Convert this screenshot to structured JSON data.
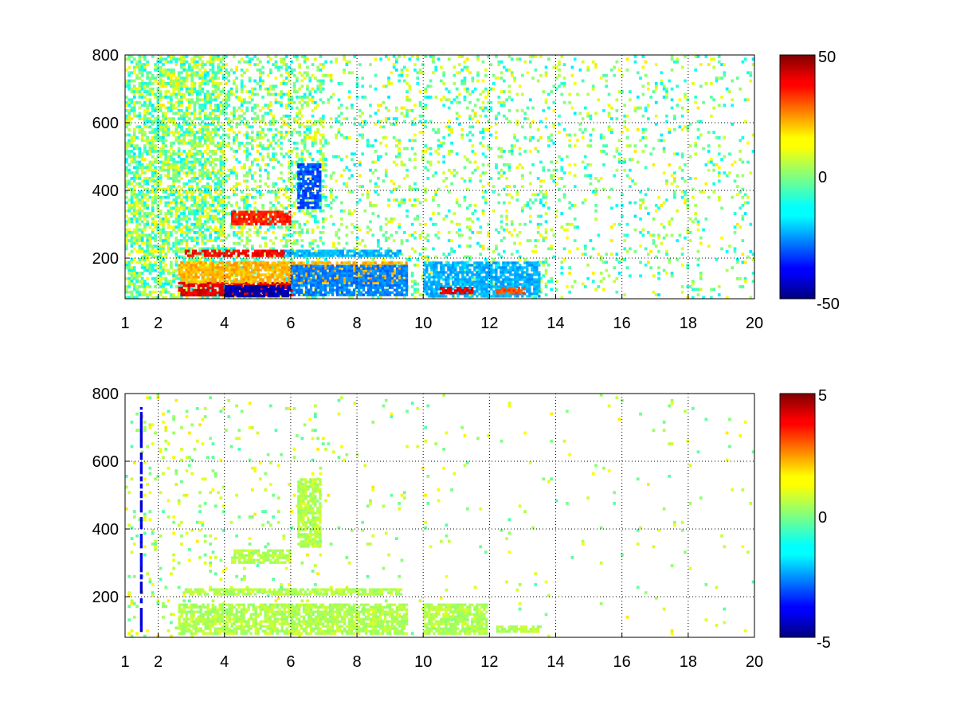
{
  "chart_data": [
    {
      "type": "heatmap",
      "panel": "top",
      "title": "",
      "xlabel": "",
      "ylabel": "",
      "xlim": [
        1,
        20
      ],
      "ylim": [
        80,
        800
      ],
      "x_ticks": [
        "1",
        "2",
        "4",
        "6",
        "8",
        "10",
        "12",
        "14",
        "16",
        "18",
        "20"
      ],
      "y_ticks": [
        "200",
        "400",
        "600",
        "800"
      ],
      "grid": true,
      "colormap": "jet",
      "colorbar": {
        "min": -50,
        "max": 50,
        "ticks": [
          "50",
          "0",
          "-50"
        ]
      },
      "regions": [
        {
          "x": [
            2.6,
            6.0
          ],
          "y": [
            90,
            130
          ],
          "value": 40
        },
        {
          "x": [
            4.0,
            6.0
          ],
          "y": [
            90,
            120
          ],
          "value": -45
        },
        {
          "x": [
            2.6,
            9.5
          ],
          "y": [
            130,
            190
          ],
          "value": 20
        },
        {
          "x": [
            6.0,
            9.5
          ],
          "y": [
            90,
            180
          ],
          "value": -25
        },
        {
          "x": [
            2.8,
            5.8
          ],
          "y": [
            205,
            225
          ],
          "value": 38
        },
        {
          "x": [
            5.8,
            9.3
          ],
          "y": [
            205,
            225
          ],
          "value": -20
        },
        {
          "x": [
            4.2,
            6.0
          ],
          "y": [
            300,
            340
          ],
          "value": 35
        },
        {
          "x": [
            6.2,
            6.9
          ],
          "y": [
            350,
            480
          ],
          "value": -30
        },
        {
          "x": [
            10.0,
            13.5
          ],
          "y": [
            90,
            190
          ],
          "value": -20
        },
        {
          "x": [
            10.5,
            11.5
          ],
          "y": [
            95,
            115
          ],
          "value": 40
        },
        {
          "x": [
            12.2,
            13.0
          ],
          "y": [
            95,
            115
          ],
          "value": 30
        }
      ],
      "scatter_value_range": [
        -15,
        15
      ]
    },
    {
      "type": "heatmap",
      "panel": "bottom",
      "title": "",
      "xlabel": "",
      "ylabel": "",
      "xlim": [
        1,
        20
      ],
      "ylim": [
        80,
        800
      ],
      "x_ticks": [
        "1",
        "2",
        "4",
        "6",
        "8",
        "10",
        "12",
        "14",
        "16",
        "18",
        "20"
      ],
      "y_ticks": [
        "200",
        "400",
        "600",
        "800"
      ],
      "grid": true,
      "colormap": "jet",
      "colorbar": {
        "min": -5,
        "max": 5,
        "ticks": [
          "5",
          "0",
          "-5"
        ]
      },
      "regions": [
        {
          "x": [
            2.6,
            6.0
          ],
          "y": [
            90,
            180
          ],
          "value": 0.5
        },
        {
          "x": [
            6.0,
            9.5
          ],
          "y": [
            90,
            180
          ],
          "value": 0.5
        },
        {
          "x": [
            2.8,
            9.3
          ],
          "y": [
            205,
            225
          ],
          "value": 0.5
        },
        {
          "x": [
            4.2,
            6.0
          ],
          "y": [
            300,
            340
          ],
          "value": 0.5
        },
        {
          "x": [
            6.2,
            6.9
          ],
          "y": [
            350,
            550
          ],
          "value": 0.5
        },
        {
          "x": [
            10.0,
            11.9
          ],
          "y": [
            90,
            180
          ],
          "value": 0.5
        },
        {
          "x": [
            12.2,
            13.5
          ],
          "y": [
            95,
            115
          ],
          "value": 0.5
        },
        {
          "x": [
            1.45,
            1.5
          ],
          "y": [
            100,
            760
          ],
          "value": -4
        }
      ],
      "scatter_value_range": [
        -0.5,
        1.5
      ]
    }
  ]
}
